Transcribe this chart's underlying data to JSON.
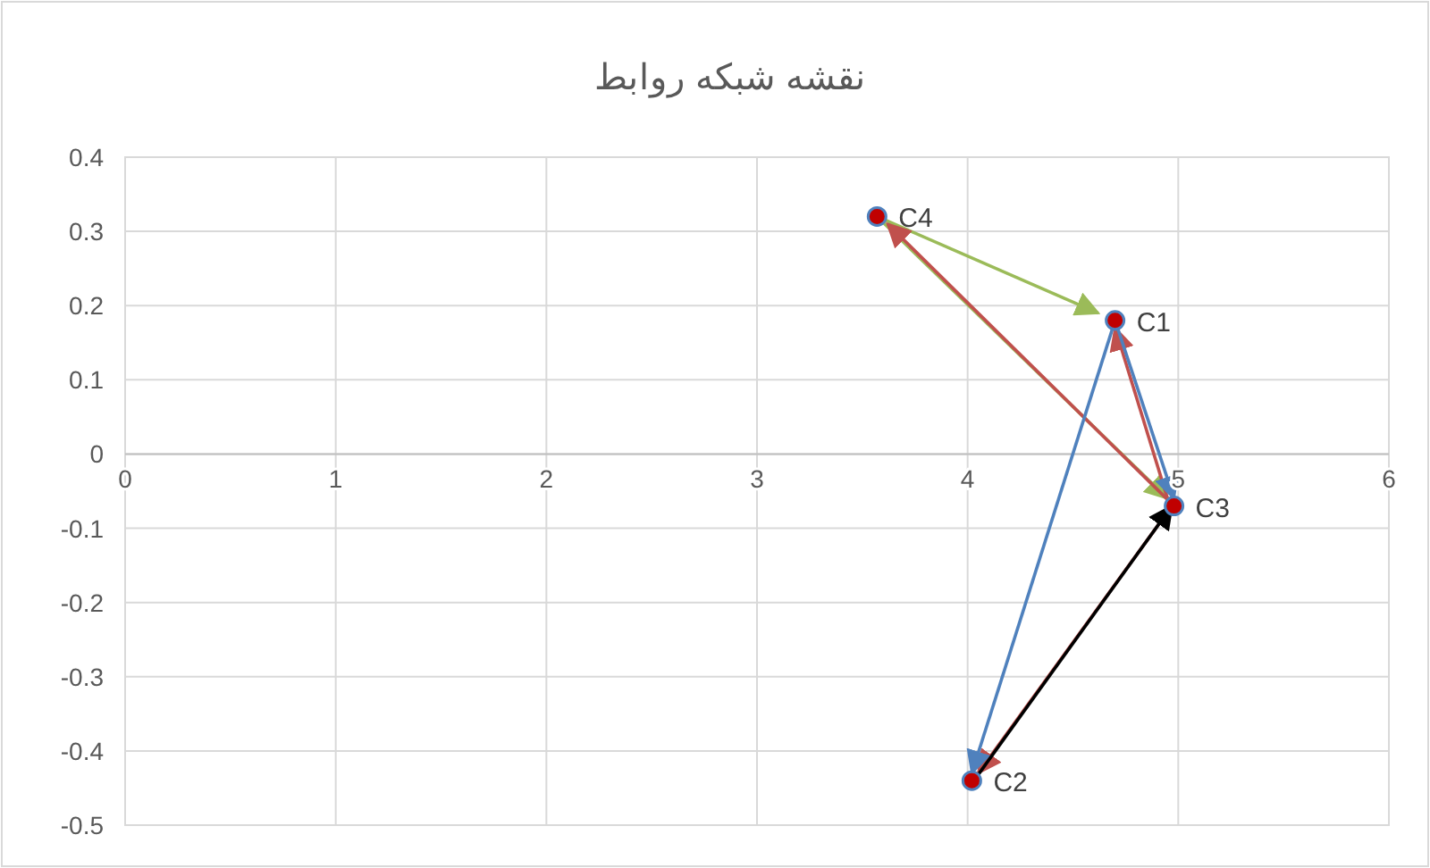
{
  "chart_data": {
    "type": "scatter",
    "title": "نقشه شبکه روابط",
    "xlim": [
      0,
      6
    ],
    "ylim": [
      -0.5,
      0.4
    ],
    "xticks": [
      0,
      1,
      2,
      3,
      4,
      5,
      6
    ],
    "yticks": [
      0.4,
      0.3,
      0.2,
      0.1,
      0,
      -0.1,
      -0.2,
      -0.3,
      -0.4,
      -0.5
    ],
    "grid": true,
    "series": [
      {
        "type": "line",
        "color": "#9bbb59",
        "x": [
          3.57,
          4.62
        ],
        "values": [
          0.32,
          0.19
        ]
      },
      {
        "type": "line",
        "color": "#9bbb59",
        "x": [
          3.57,
          4.95
        ],
        "values": [
          0.32,
          -0.06
        ]
      },
      {
        "type": "line",
        "color": "#c0504d",
        "x": [
          4.98,
          3.62
        ],
        "values": [
          -0.07,
          0.31
        ]
      },
      {
        "type": "line",
        "color": "#c0504d",
        "x": [
          4.96,
          4.7
        ],
        "values": [
          -0.07,
          0.17
        ]
      },
      {
        "type": "line",
        "color": "#c0504d",
        "x": [
          4.97,
          4.05
        ],
        "values": [
          -0.07,
          -0.43
        ]
      },
      {
        "type": "line",
        "color": "#4f81bd",
        "x": [
          4.7,
          4.98
        ],
        "values": [
          0.18,
          -0.06
        ]
      },
      {
        "type": "line",
        "color": "#4f81bd",
        "x": [
          4.7,
          4.02
        ],
        "values": [
          0.18,
          -0.43
        ]
      },
      {
        "type": "line",
        "color": "#000000",
        "x": [
          4.03,
          4.97
        ],
        "values": [
          -0.44,
          -0.07
        ]
      },
      {
        "marker": "circle",
        "color": "#c00000",
        "x": [
          4.7,
          4.02,
          4.98,
          3.57
        ],
        "values": [
          0.18,
          -0.44,
          -0.07,
          0.32
        ]
      }
    ],
    "annotations": [
      {
        "text": "C1",
        "x": 4.7,
        "y": 0.18
      },
      {
        "text": "C2",
        "x": 4.02,
        "y": -0.44
      },
      {
        "text": "C3",
        "x": 4.98,
        "y": -0.07
      },
      {
        "text": "C4",
        "x": 3.57,
        "y": 0.32
      }
    ]
  }
}
